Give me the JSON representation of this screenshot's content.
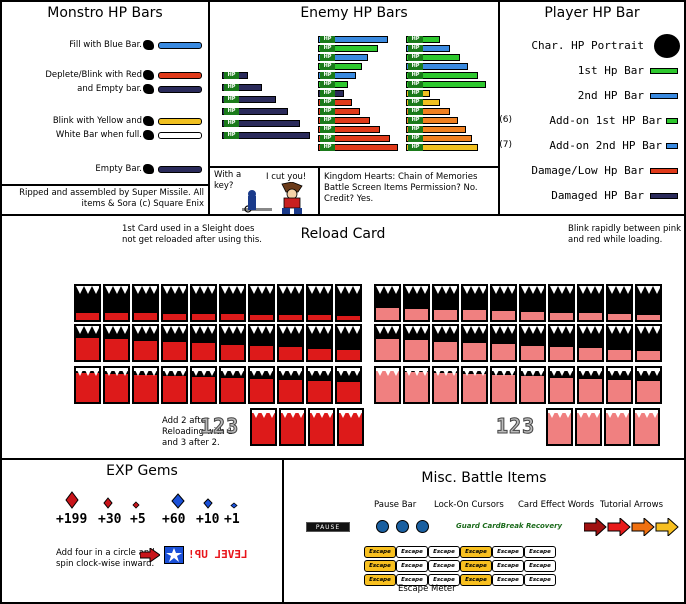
{
  "player": {
    "title": "Player HP Bar",
    "rows": [
      {
        "label": "Char. HP Portrait",
        "swatch": "portrait"
      },
      {
        "label": "1st Hp Bar",
        "color": "#2ec82e"
      },
      {
        "label": "2nd HP Bar",
        "color": "#3a8ae0"
      },
      {
        "label": "Add-on 1st HP Bar",
        "color": "#2ec82e",
        "tag": "(6)"
      },
      {
        "label": "Add-on 2nd HP Bar",
        "color": "#3a8ae0",
        "tag": "(7)"
      },
      {
        "label": "Damage/Low Hp Bar",
        "color": "#e03a1a"
      },
      {
        "label": "Damaged HP Bar",
        "color": "#2a2a5a"
      }
    ]
  },
  "enemy": {
    "title": "Enemy HP Bars",
    "hp_tag": "HP",
    "credit": "Kingdom Hearts: Chain of Memories Battle Screen Items Permission? No. Credit? Yes.",
    "cut_text": "I cut you!",
    "key_text": "With a key?"
  },
  "monstro": {
    "title": "Monstro HP Bars",
    "rows": [
      {
        "text": "Fill with Blue Bar.",
        "color": "#3a8ae0"
      },
      {
        "text": "Deplete/Blink with Red",
        "color": "#e03a1a"
      },
      {
        "text": "and Empty bar.",
        "color": "#2a2a5a"
      },
      {
        "text": "Blink with Yellow and",
        "color": "#f0c020"
      },
      {
        "text": "White Bar when full.",
        "color": "#ffffff"
      },
      {
        "text": "Empty Bar.",
        "color": "#2a2a5a"
      }
    ],
    "rip_credit": "Ripped and assembled by Super Missile. All items & Sora (c) Square Enix"
  },
  "reload": {
    "title": "Reload Card",
    "note_left": "Blink rapidly between pink and red while loading.",
    "note_right": "1st Card used in a Sleight does not get reloaded after using this.",
    "note_bottom": "Add 2 after Reloading with 1 and 3 after 2.",
    "num_left": "123",
    "num_right": "123"
  },
  "exp": {
    "title": "EXP Gems",
    "values": [
      "+1",
      "+10",
      "+60",
      "+5",
      "+30",
      "+199"
    ],
    "level_up": "LEVEL UP!",
    "level_note": "Add four in a circle and spin clock-wise inward."
  },
  "misc": {
    "title": "Misc. Battle Items",
    "headers": [
      "Tutorial Arrows",
      "Card Effect Words",
      "Lock-On Cursors",
      "Pause Bar"
    ],
    "card_effect": "Guard CardBreak Recovery",
    "pause": "PAUSE",
    "escape": "Escape",
    "escape_meter": "Escape Meter"
  },
  "colors": {
    "green": "#2ec82e",
    "blue": "#3a8ae0",
    "red": "#e03a1a",
    "navy": "#2a2a5a",
    "yellow": "#f0c020",
    "orange": "#f08020",
    "card_red": "#dd1a1a",
    "card_pink": "#f08080"
  }
}
